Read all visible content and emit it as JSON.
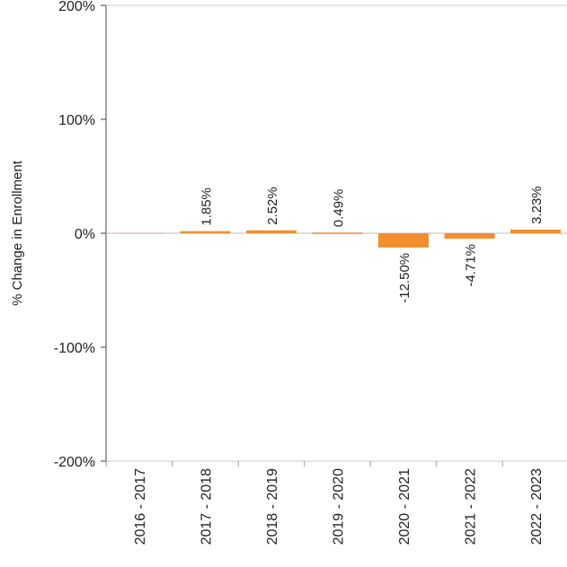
{
  "chart_data": {
    "type": "bar",
    "ylabel": "% Change in Enrollment",
    "xlabel": "",
    "ylim": [
      -200,
      200
    ],
    "yticks": [
      200,
      100,
      0,
      -100,
      -200
    ],
    "ytick_labels": [
      "200%",
      "100%",
      "0%",
      "-100%",
      "-200%"
    ],
    "categories": [
      "2016 - 2017",
      "2017 - 2018",
      "2018 - 2019",
      "2019 - 2020",
      "2020 - 2021",
      "2021 - 2022",
      "2022 - 2023"
    ],
    "values": [
      0,
      1.85,
      2.52,
      0.49,
      -12.5,
      -4.71,
      3.23
    ],
    "data_labels": [
      "",
      "1.85%",
      "2.52%",
      "0.49%",
      "-12.50%",
      "-4.71%",
      "3.23%"
    ],
    "bar_color": "#f28e2b",
    "grid": false,
    "legend": "none"
  }
}
